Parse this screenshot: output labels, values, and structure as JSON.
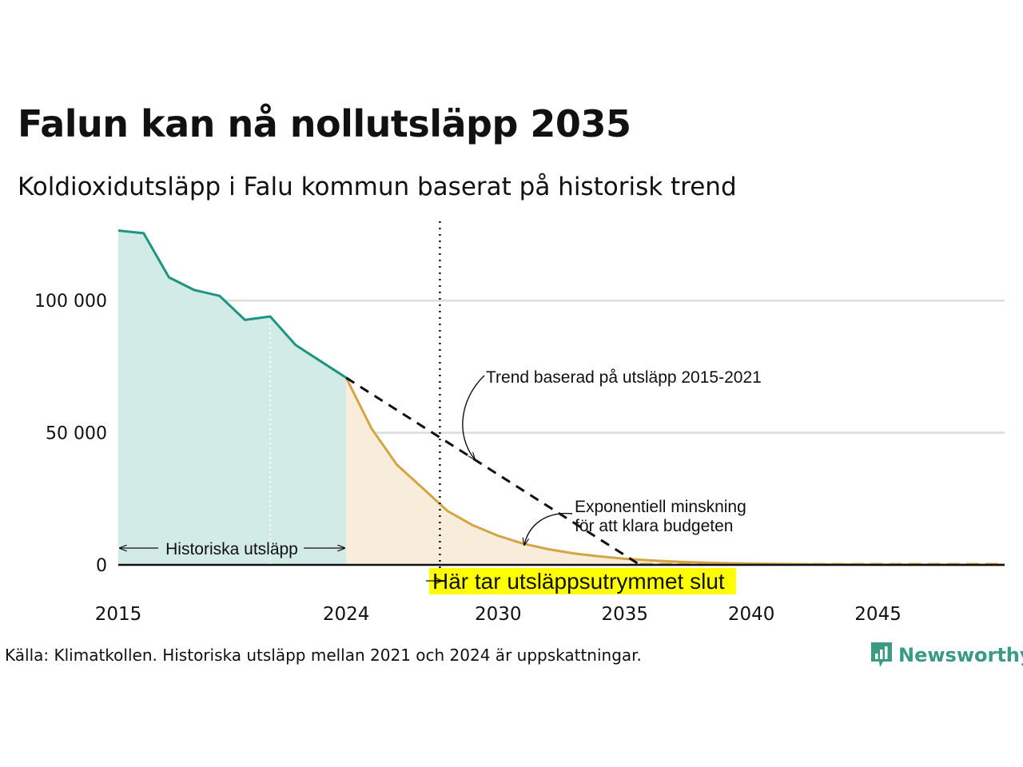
{
  "header": {
    "title": "Falun kan nå nollutsläpp 2035",
    "subtitle": "Koldioxidutsläpp i Falu kommun baserat på historisk trend"
  },
  "footer": {
    "source": "Källa: Klimatkollen. Historiska utsläpp mellan 2021 och 2024 är uppskattningar.",
    "logo_text": "Newsworthy",
    "logo_icon": "bar-chart-icon",
    "logo_color": "#3a9b82"
  },
  "chart_data": {
    "type": "area",
    "xlim": [
      2015,
      2050
    ],
    "ylim": [
      0,
      130000
    ],
    "yticks": [
      0,
      50000,
      100000
    ],
    "ytick_labels": [
      "0",
      "50 000",
      "100 000"
    ],
    "xticks": [
      2015,
      2024,
      2030,
      2035,
      2040,
      2045
    ],
    "xtick_labels": [
      "2015",
      "2024",
      "2030",
      "2035",
      "2040",
      "2045"
    ],
    "grid": true,
    "series": [
      {
        "name": "Historiska utsläpp",
        "style": "filled-line",
        "color": "#1e9483",
        "fill": "#d2ebe6",
        "x": [
          2015,
          2016,
          2017,
          2018,
          2019,
          2020,
          2021,
          2022,
          2023,
          2024
        ],
        "y": [
          126500,
          125500,
          108800,
          104000,
          101800,
          92700,
          94000,
          83200,
          77000,
          70800
        ]
      },
      {
        "name": "Exponentiell minskning för att klara budgeten",
        "style": "filled-line",
        "color": "#d4a445",
        "fill": "#f8ecdb",
        "x": [
          2024,
          2025,
          2026,
          2027,
          2028,
          2029,
          2030,
          2031,
          2032,
          2033,
          2034,
          2035,
          2036,
          2037,
          2038,
          2039,
          2040,
          2042,
          2045,
          2050
        ],
        "y": [
          70800,
          51600,
          37900,
          29200,
          20400,
          15000,
          11000,
          8000,
          5900,
          4300,
          3200,
          2300,
          1700,
          1200,
          900,
          650,
          480,
          250,
          80,
          0
        ]
      },
      {
        "name": "Trend baserad på utsläpp 2015-2021",
        "style": "dashed",
        "color": "#111111",
        "x": [
          2024,
          2035.6
        ],
        "y": [
          70800,
          0
        ]
      }
    ],
    "reference_line": {
      "x": 2027.7,
      "label": "Här tar utsläppsutrymmet slut",
      "label_bg": "#ffff00"
    },
    "annotations": {
      "trend": "Trend baserad på utsläpp 2015-2021",
      "exp_line1": "Exponentiell minskning",
      "exp_line2": "för att klara budgeten",
      "historic": "Historiska utsläpp"
    }
  }
}
